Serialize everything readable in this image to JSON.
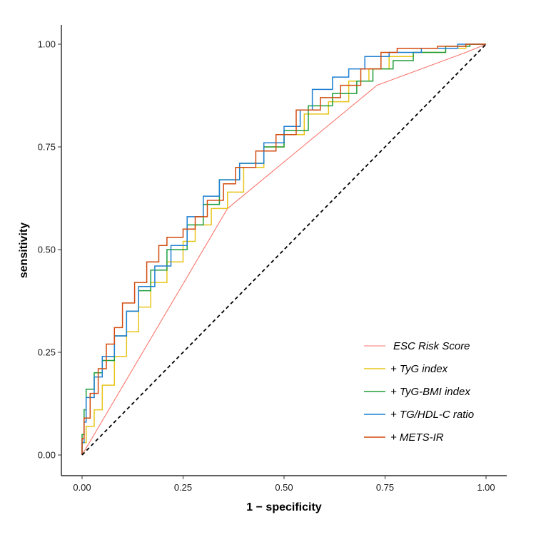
{
  "chart_data": {
    "type": "line",
    "xlabel": "1 − specificity",
    "ylabel": "sensitivity",
    "xlim": [
      0,
      1
    ],
    "ylim": [
      0,
      1
    ],
    "x_ticks": [
      "0.00",
      "0.25",
      "0.50",
      "0.75",
      "1.00"
    ],
    "y_ticks": [
      "0.00",
      "0.25",
      "0.50",
      "0.75",
      "1.00"
    ],
    "grid": false,
    "legend_position": "bottom-right",
    "reference_line": {
      "style": "dashed",
      "color": "#000000",
      "points": [
        [
          0,
          0
        ],
        [
          1,
          1
        ]
      ]
    },
    "series": [
      {
        "name": "ESC Risk Score",
        "color": "#F8766D",
        "step": false,
        "points": [
          [
            0,
            0
          ],
          [
            0.36,
            0.6
          ],
          [
            0.73,
            0.9
          ],
          [
            0.95,
            0.98
          ],
          [
            1,
            1
          ]
        ]
      },
      {
        "name": "+ TyG index",
        "color": "#E7C51A",
        "step": true,
        "points": [
          [
            0,
            0
          ],
          [
            0.01,
            0.03
          ],
          [
            0.03,
            0.07
          ],
          [
            0.05,
            0.11
          ],
          [
            0.08,
            0.17
          ],
          [
            0.11,
            0.24
          ],
          [
            0.14,
            0.3
          ],
          [
            0.17,
            0.36
          ],
          [
            0.21,
            0.42
          ],
          [
            0.25,
            0.47
          ],
          [
            0.28,
            0.52
          ],
          [
            0.32,
            0.56
          ],
          [
            0.36,
            0.6
          ],
          [
            0.4,
            0.64
          ],
          [
            0.45,
            0.7
          ],
          [
            0.5,
            0.75
          ],
          [
            0.55,
            0.78
          ],
          [
            0.61,
            0.83
          ],
          [
            0.66,
            0.86
          ],
          [
            0.71,
            0.91
          ],
          [
            0.76,
            0.94
          ],
          [
            0.82,
            0.97
          ],
          [
            0.9,
            0.98
          ],
          [
            0.95,
            0.99
          ],
          [
            1,
            1
          ]
        ]
      },
      {
        "name": "+ TyG-BMI index",
        "color": "#1E9E3B",
        "step": true,
        "points": [
          [
            0,
            0
          ],
          [
            0.005,
            0.05
          ],
          [
            0.01,
            0.11
          ],
          [
            0.03,
            0.16
          ],
          [
            0.05,
            0.2
          ],
          [
            0.08,
            0.23
          ],
          [
            0.11,
            0.29
          ],
          [
            0.14,
            0.35
          ],
          [
            0.17,
            0.4
          ],
          [
            0.21,
            0.45
          ],
          [
            0.26,
            0.5
          ],
          [
            0.3,
            0.56
          ],
          [
            0.34,
            0.61
          ],
          [
            0.39,
            0.67
          ],
          [
            0.45,
            0.71
          ],
          [
            0.5,
            0.75
          ],
          [
            0.56,
            0.79
          ],
          [
            0.62,
            0.85
          ],
          [
            0.68,
            0.88
          ],
          [
            0.72,
            0.91
          ],
          [
            0.77,
            0.94
          ],
          [
            0.82,
            0.96
          ],
          [
            0.9,
            0.98
          ],
          [
            0.96,
            0.995
          ],
          [
            1,
            1
          ]
        ]
      },
      {
        "name": "+ TG/HDL-C ratio",
        "color": "#1F7FD1",
        "step": true,
        "points": [
          [
            0,
            0
          ],
          [
            0.005,
            0.03
          ],
          [
            0.01,
            0.08
          ],
          [
            0.03,
            0.14
          ],
          [
            0.05,
            0.19
          ],
          [
            0.08,
            0.24
          ],
          [
            0.11,
            0.29
          ],
          [
            0.14,
            0.35
          ],
          [
            0.18,
            0.41
          ],
          [
            0.22,
            0.46
          ],
          [
            0.26,
            0.51
          ],
          [
            0.3,
            0.58
          ],
          [
            0.34,
            0.63
          ],
          [
            0.39,
            0.67
          ],
          [
            0.45,
            0.71
          ],
          [
            0.5,
            0.76
          ],
          [
            0.54,
            0.8
          ],
          [
            0.57,
            0.84
          ],
          [
            0.62,
            0.89
          ],
          [
            0.66,
            0.92
          ],
          [
            0.7,
            0.94
          ],
          [
            0.76,
            0.97
          ],
          [
            0.84,
            0.98
          ],
          [
            0.93,
            0.99
          ],
          [
            1,
            1
          ]
        ]
      },
      {
        "name": "+ METS-IR",
        "color": "#D24A0E",
        "step": true,
        "points": [
          [
            0,
            0
          ],
          [
            0.005,
            0.04
          ],
          [
            0.02,
            0.09
          ],
          [
            0.04,
            0.15
          ],
          [
            0.06,
            0.21
          ],
          [
            0.08,
            0.27
          ],
          [
            0.1,
            0.31
          ],
          [
            0.13,
            0.37
          ],
          [
            0.16,
            0.42
          ],
          [
            0.19,
            0.47
          ],
          [
            0.21,
            0.51
          ],
          [
            0.25,
            0.53
          ],
          [
            0.28,
            0.55
          ],
          [
            0.31,
            0.58
          ],
          [
            0.35,
            0.62
          ],
          [
            0.38,
            0.66
          ],
          [
            0.43,
            0.7
          ],
          [
            0.48,
            0.74
          ],
          [
            0.53,
            0.78
          ],
          [
            0.59,
            0.84
          ],
          [
            0.64,
            0.87
          ],
          [
            0.69,
            0.9
          ],
          [
            0.74,
            0.94
          ],
          [
            0.78,
            0.98
          ],
          [
            0.88,
            0.99
          ],
          [
            0.95,
            0.995
          ],
          [
            1,
            1
          ]
        ]
      }
    ]
  }
}
